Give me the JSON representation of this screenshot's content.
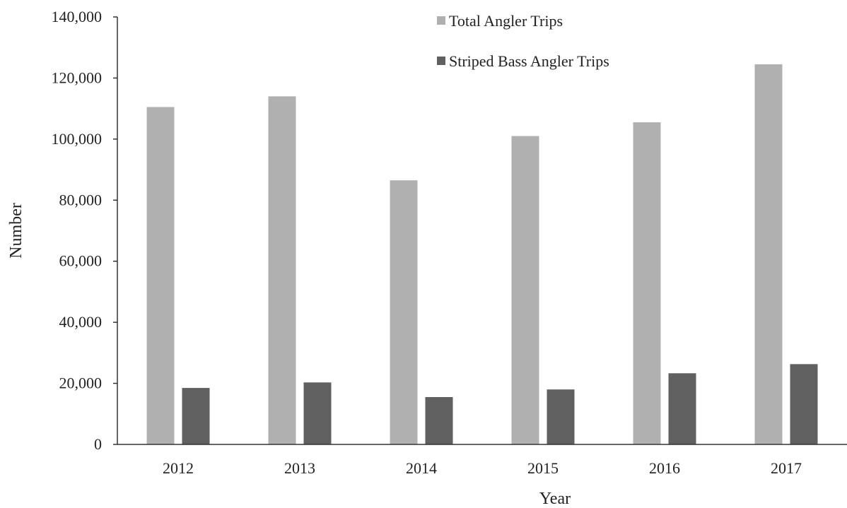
{
  "chart_data": {
    "type": "bar",
    "xlabel": "Year",
    "ylabel": "Number",
    "ylim": [
      0,
      140000
    ],
    "yticks": [
      0,
      20000,
      40000,
      60000,
      80000,
      100000,
      120000,
      140000
    ],
    "ytick_labels": [
      "0",
      "20,000",
      "40,000",
      "60,000",
      "80,000",
      "100,000",
      "120,000",
      "140,000"
    ],
    "categories": [
      "2012",
      "2013",
      "2014",
      "2015",
      "2016",
      "2017"
    ],
    "series": [
      {
        "name": "Total Angler Trips",
        "color": "#b0b0b0",
        "values": [
          110500,
          114000,
          86500,
          101000,
          105500,
          124500
        ]
      },
      {
        "name": "Striped Bass Angler Trips",
        "color": "#606060",
        "values": [
          18500,
          20300,
          15500,
          18000,
          23300,
          26300
        ]
      }
    ],
    "grid": false,
    "legend_position": "top-right"
  }
}
